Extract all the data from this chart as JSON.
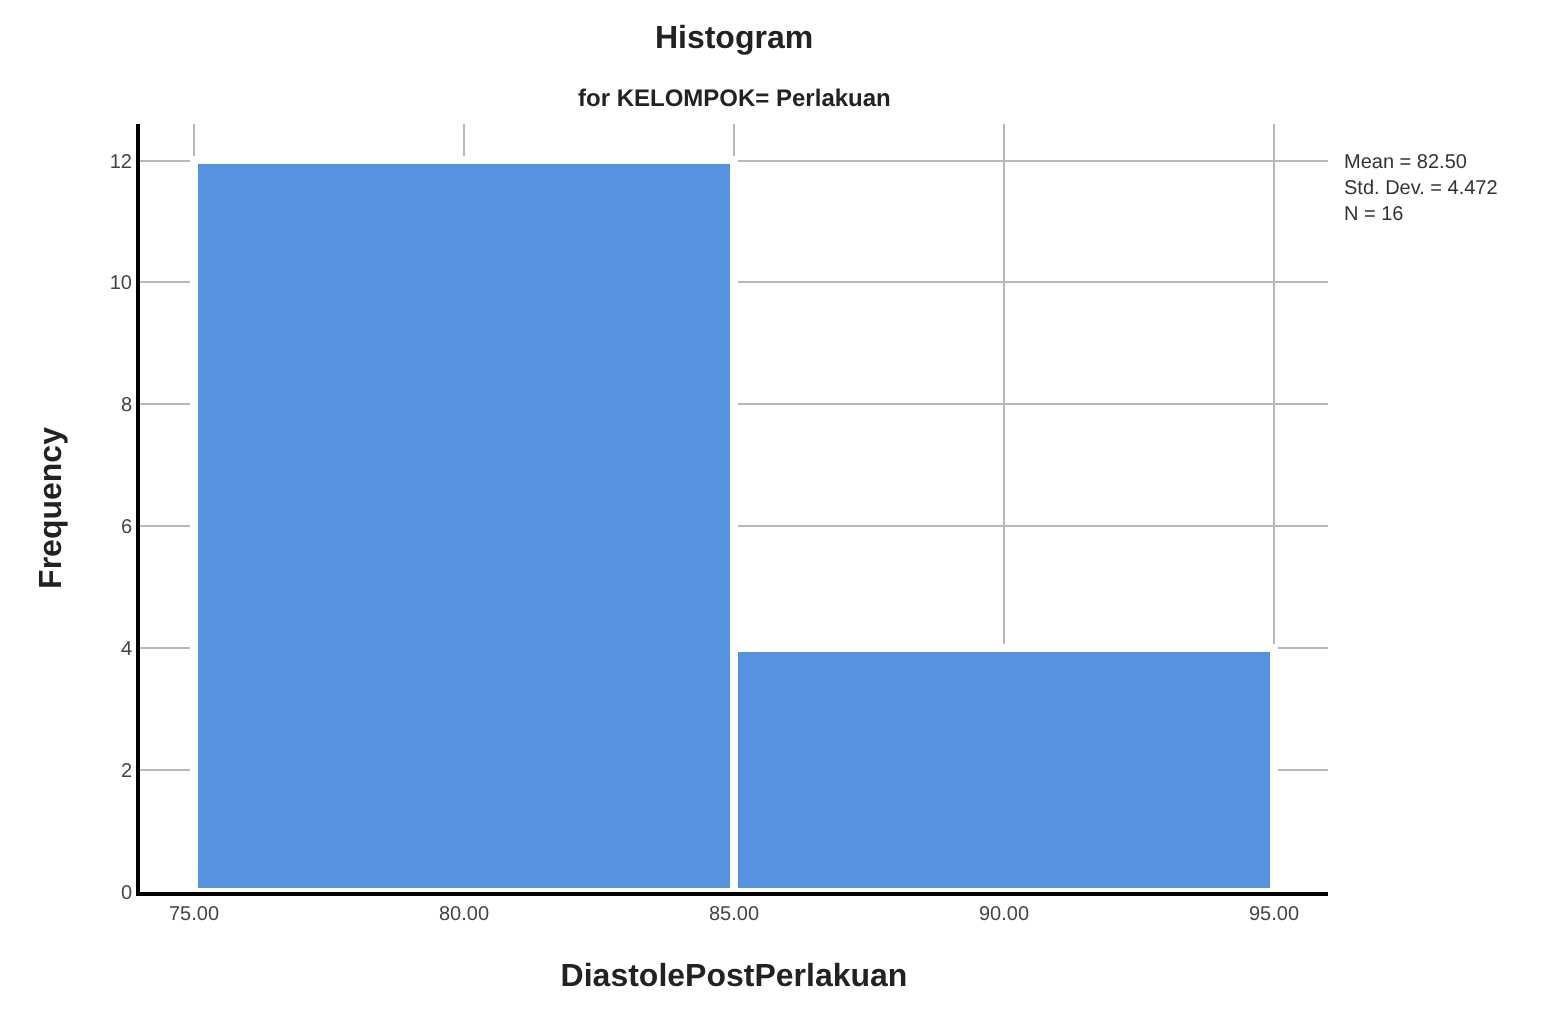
{
  "chart_data": {
    "type": "histogram",
    "title": "Histogram",
    "subtitle": "for KELOMPOK= Perlakuan",
    "xlabel": "DiastolePostPerlakuan",
    "ylabel": "Frequency",
    "bins": [
      75,
      85,
      95
    ],
    "values": [
      12,
      4
    ],
    "color": "#5592e0",
    "xlim": [
      74,
      96
    ],
    "xticks": [
      {
        "value": 75,
        "label": "75.00"
      },
      {
        "value": 80,
        "label": "80.00"
      },
      {
        "value": 85,
        "label": "85.00"
      },
      {
        "value": 90,
        "label": "90.00"
      },
      {
        "value": 95,
        "label": "95.00"
      }
    ],
    "ylim": [
      0,
      12.6
    ],
    "yticks": [
      0,
      2,
      4,
      6,
      8,
      10,
      12
    ],
    "grid": true,
    "annotations": [
      "Mean = 82.50",
      "Std. Dev. = 4.472",
      "N = 16"
    ]
  }
}
